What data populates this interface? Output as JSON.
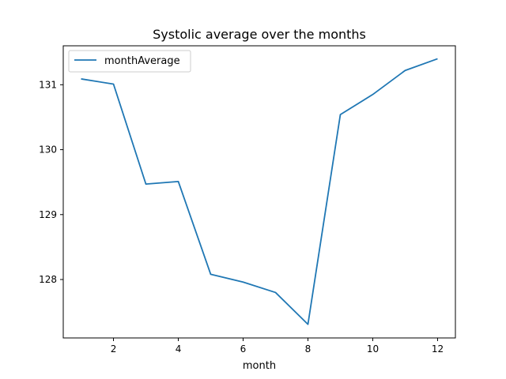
{
  "chart_data": {
    "type": "line",
    "title": "Systolic average over the months",
    "xlabel": "month",
    "ylabel": "",
    "x": [
      1,
      2,
      3,
      4,
      5,
      6,
      7,
      8,
      9,
      10,
      11,
      12
    ],
    "series": [
      {
        "name": "monthAverage",
        "color": "#1f77b4",
        "values": [
          131.09,
          131.01,
          129.47,
          129.51,
          128.08,
          127.96,
          127.8,
          127.31,
          130.54,
          130.85,
          131.22,
          131.4
        ]
      }
    ],
    "xlim": [
      0.45,
      12.55
    ],
    "ylim": [
      127.1,
      131.6
    ],
    "xticks": [
      "2",
      "4",
      "6",
      "8",
      "10",
      "12"
    ],
    "yticks": [
      "128",
      "129",
      "130",
      "131"
    ],
    "grid": false,
    "legend_position": "upper-left"
  }
}
